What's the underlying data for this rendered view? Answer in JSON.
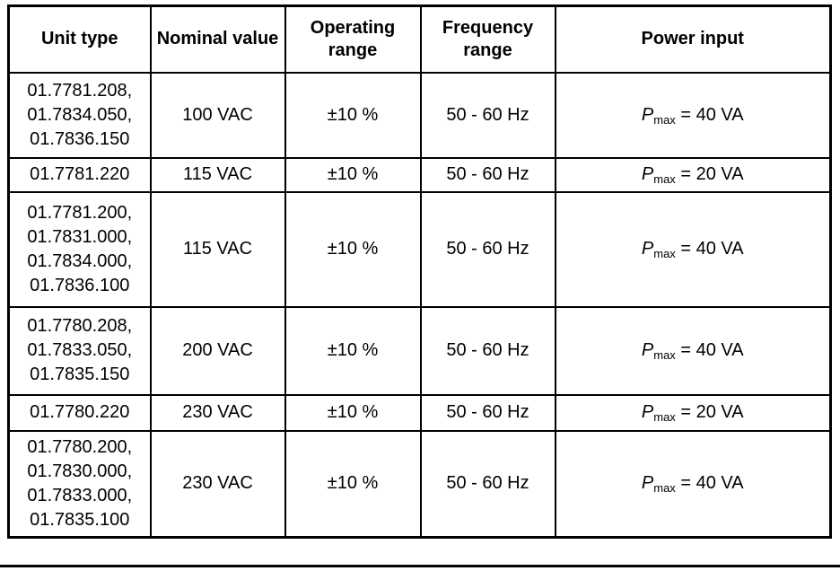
{
  "colors": {
    "background": "#ffffff",
    "border": "#000000",
    "text": "#000000"
  },
  "table": {
    "headers": [
      "Unit type",
      "Nominal value",
      "Operating range",
      "Frequency range",
      "Power input"
    ],
    "rows": [
      {
        "unit_types": [
          "01.7781.208,",
          "01.7834.050,",
          "01.7836.150"
        ],
        "nominal_value": "100 VAC",
        "operating_range": "±10 %",
        "frequency_range": "50 - 60 Hz",
        "power_input": {
          "symbol": "P",
          "subscript": "max",
          "rest": " = 40 VA"
        }
      },
      {
        "unit_types": [
          "01.7781.220"
        ],
        "nominal_value": "115 VAC",
        "operating_range": "±10 %",
        "frequency_range": "50 - 60 Hz",
        "power_input": {
          "symbol": "P",
          "subscript": "max",
          "rest": " = 20 VA"
        }
      },
      {
        "unit_types": [
          "01.7781.200,",
          "01.7831.000,",
          "01.7834.000,",
          "01.7836.100"
        ],
        "nominal_value": "115 VAC",
        "operating_range": "±10 %",
        "frequency_range": "50 - 60 Hz",
        "power_input": {
          "symbol": "P",
          "subscript": "max",
          "rest": " = 40 VA"
        }
      },
      {
        "unit_types": [
          "01.7780.208,",
          "01.7833.050,",
          "01.7835.150"
        ],
        "nominal_value": "200 VAC",
        "operating_range": "±10 %",
        "frequency_range": "50 - 60 Hz",
        "power_input": {
          "symbol": "P",
          "subscript": "max",
          "rest": " = 40 VA"
        }
      },
      {
        "unit_types": [
          "01.7780.220"
        ],
        "nominal_value": "230 VAC",
        "operating_range": "±10 %",
        "frequency_range": "50 - 60 Hz",
        "power_input": {
          "symbol": "P",
          "subscript": "max",
          "rest": " = 20 VA"
        }
      },
      {
        "unit_types": [
          "01.7780.200,",
          "01.7830.000,",
          "01.7833.000,",
          "01.7835.100"
        ],
        "nominal_value": "230 VAC",
        "operating_range": "±10 %",
        "frequency_range": "50 - 60 Hz",
        "power_input": {
          "symbol": "P",
          "subscript": "max",
          "rest": " = 40 VA"
        }
      }
    ]
  }
}
